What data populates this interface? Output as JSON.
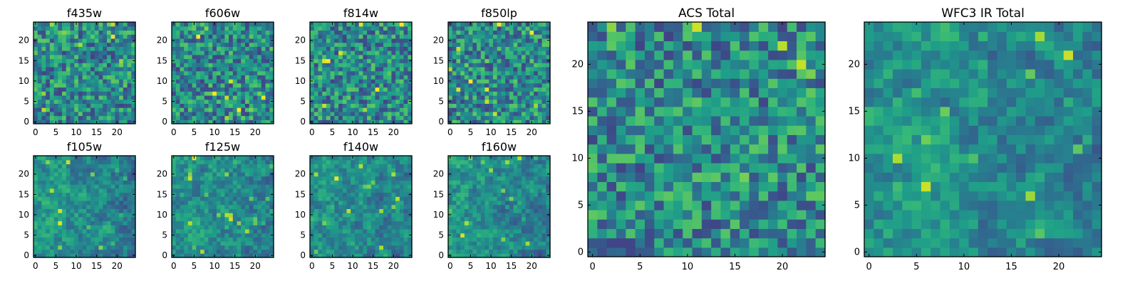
{
  "chart_data": [
    {
      "type": "heatmap",
      "title": "f435w",
      "xlim": [
        0,
        24
      ],
      "ylim": [
        0,
        24
      ],
      "xticks": [
        0,
        5,
        10,
        15,
        20
      ],
      "yticks": [
        0,
        5,
        10,
        15,
        20
      ],
      "colormap": "viridis",
      "seed": 11
    },
    {
      "type": "heatmap",
      "title": "f606w",
      "xlim": [
        0,
        24
      ],
      "ylim": [
        0,
        24
      ],
      "xticks": [
        0,
        5,
        10,
        15,
        20
      ],
      "yticks": [
        0,
        5,
        10,
        15,
        20
      ],
      "colormap": "viridis",
      "seed": 23
    },
    {
      "type": "heatmap",
      "title": "f814w",
      "xlim": [
        0,
        24
      ],
      "ylim": [
        0,
        24
      ],
      "xticks": [
        0,
        5,
        10,
        15,
        20
      ],
      "yticks": [
        0,
        5,
        10,
        15,
        20
      ],
      "colormap": "viridis",
      "seed": 37
    },
    {
      "type": "heatmap",
      "title": "f850lp",
      "xlim": [
        0,
        24
      ],
      "ylim": [
        0,
        24
      ],
      "xticks": [
        0,
        5,
        10,
        15,
        20
      ],
      "yticks": [
        0,
        5,
        10,
        15,
        20
      ],
      "colormap": "viridis",
      "seed": 41
    },
    {
      "type": "heatmap",
      "title": "f105w",
      "xlim": [
        0,
        24
      ],
      "ylim": [
        0,
        24
      ],
      "xticks": [
        0,
        5,
        10,
        15,
        20
      ],
      "yticks": [
        0,
        5,
        10,
        15,
        20
      ],
      "colormap": "viridis",
      "seed": 53
    },
    {
      "type": "heatmap",
      "title": "f125w",
      "xlim": [
        0,
        24
      ],
      "ylim": [
        0,
        24
      ],
      "xticks": [
        0,
        5,
        10,
        15,
        20
      ],
      "yticks": [
        0,
        5,
        10,
        15,
        20
      ],
      "colormap": "viridis",
      "seed": 67
    },
    {
      "type": "heatmap",
      "title": "f140w",
      "xlim": [
        0,
        24
      ],
      "ylim": [
        0,
        24
      ],
      "xticks": [
        0,
        5,
        10,
        15,
        20
      ],
      "yticks": [
        0,
        5,
        10,
        15,
        20
      ],
      "colormap": "viridis",
      "seed": 79
    },
    {
      "type": "heatmap",
      "title": "f160w",
      "xlim": [
        0,
        24
      ],
      "ylim": [
        0,
        24
      ],
      "xticks": [
        0,
        5,
        10,
        15,
        20
      ],
      "yticks": [
        0,
        5,
        10,
        15,
        20
      ],
      "colormap": "viridis",
      "seed": 83
    },
    {
      "type": "heatmap",
      "title": "ACS Total",
      "xlim": [
        0,
        24
      ],
      "ylim": [
        0,
        24
      ],
      "xticks": [
        0,
        5,
        10,
        15,
        20
      ],
      "yticks": [
        0,
        5,
        10,
        15,
        20
      ],
      "colormap": "viridis",
      "seed": 97
    },
    {
      "type": "heatmap",
      "title": "WFC3 IR Total",
      "xlim": [
        0,
        24
      ],
      "ylim": [
        0,
        24
      ],
      "xticks": [
        0,
        5,
        10,
        15,
        20
      ],
      "yticks": [
        0,
        5,
        10,
        15,
        20
      ],
      "colormap": "viridis",
      "seed": 101
    }
  ]
}
